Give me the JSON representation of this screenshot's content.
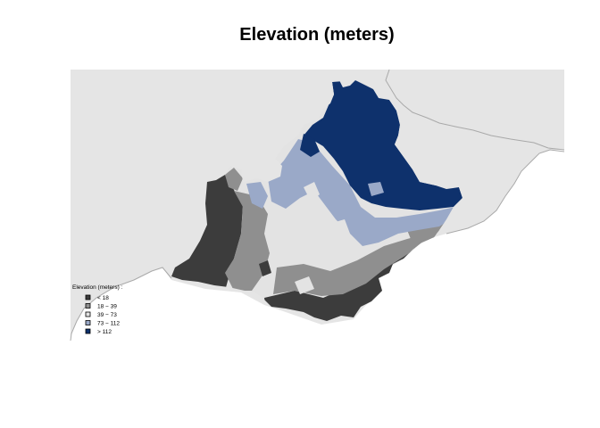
{
  "map": {
    "title": "Elevation (meters)",
    "background_color": "#e5e5e5",
    "coast_color": "#a9a9a9",
    "legend": {
      "title": "Elevation (meters) :",
      "classes": [
        {
          "label": "< 18",
          "color": "#3c3c3c"
        },
        {
          "label": "18 − 39",
          "color": "#8f8f8f"
        },
        {
          "label": "39 − 73",
          "color": "#e3e3e3"
        },
        {
          "label": "73 − 112",
          "color": "#9aa9c8"
        },
        {
          "label": "> 112",
          "color": "#0e316c"
        }
      ]
    }
  }
}
